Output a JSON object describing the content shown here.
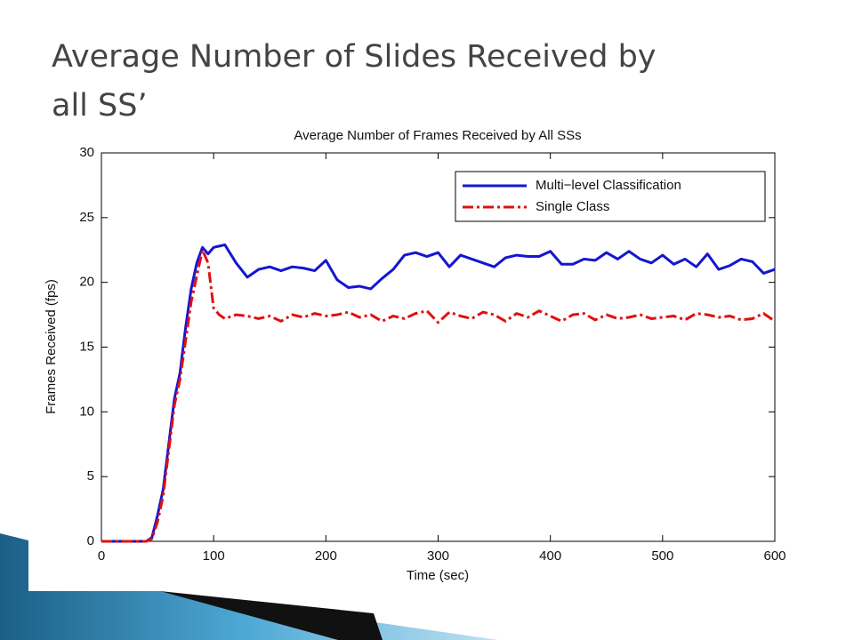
{
  "slide_title": [
    "Average Number of Slides Received by",
    "all SS’"
  ],
  "chart_data": {
    "type": "line",
    "title": "Average Number of Frames Received by All SSs",
    "xlabel": "Time (sec)",
    "ylabel": "Frames Received (fps)",
    "xlim": [
      0,
      600
    ],
    "xticks": [
      0,
      100,
      200,
      300,
      400,
      500,
      600
    ],
    "ylim": [
      0,
      30
    ],
    "yticks": [
      0,
      5,
      10,
      15,
      20,
      25,
      30
    ],
    "legend": "upper right",
    "grid": false,
    "x": [
      0,
      10,
      20,
      30,
      40,
      45,
      50,
      55,
      60,
      65,
      70,
      75,
      80,
      85,
      90,
      95,
      100,
      105,
      110,
      120,
      130,
      140,
      150,
      160,
      170,
      180,
      190,
      200,
      210,
      220,
      230,
      240,
      250,
      260,
      270,
      280,
      290,
      300,
      310,
      320,
      330,
      340,
      350,
      360,
      370,
      380,
      390,
      400,
      410,
      420,
      430,
      440,
      450,
      460,
      470,
      480,
      490,
      500,
      510,
      520,
      530,
      540,
      550,
      560,
      570,
      580,
      590,
      600
    ],
    "series": [
      {
        "name": "Multi−level Classification",
        "color": "#1515d0",
        "style": "solid",
        "values": [
          0,
          0,
          0,
          0,
          0,
          0.3,
          2,
          4,
          7.5,
          11,
          13,
          16.5,
          19.5,
          21.5,
          22.7,
          22.2,
          22.7,
          22.8,
          22.9,
          21.5,
          20.4,
          21,
          21.2,
          20.9,
          21.2,
          21.1,
          20.9,
          21.7,
          20.2,
          19.6,
          19.7,
          19.5,
          20.3,
          21,
          22.1,
          22.3,
          22,
          22.3,
          21.2,
          22.1,
          21.8,
          21.5,
          21.2,
          21.9,
          22.1,
          22,
          22,
          22.4,
          21.4,
          21.4,
          21.8,
          21.7,
          22.3,
          21.8,
          22.4,
          21.8,
          21.5,
          22.1,
          21.4,
          21.8,
          21.2,
          22.2,
          21,
          21.3,
          21.8,
          21.6,
          20.7,
          21
        ]
      },
      {
        "name": "Single Class",
        "color": "#e01010",
        "style": "dashdot",
        "values": [
          0,
          0,
          0,
          0,
          0,
          0.2,
          1.5,
          3.5,
          7,
          10.5,
          12.5,
          15.5,
          18.5,
          20.5,
          22.5,
          21.5,
          18,
          17.5,
          17.2,
          17.5,
          17.4,
          17.2,
          17.4,
          17,
          17.5,
          17.3,
          17.6,
          17.4,
          17.5,
          17.7,
          17.3,
          17.5,
          17,
          17.4,
          17.2,
          17.6,
          17.8,
          16.9,
          17.7,
          17.4,
          17.2,
          17.7,
          17.5,
          17,
          17.6,
          17.3,
          17.8,
          17.4,
          17,
          17.5,
          17.6,
          17.1,
          17.5,
          17.2,
          17.3,
          17.5,
          17.2,
          17.3,
          17.4,
          17.1,
          17.6,
          17.5,
          17.3,
          17.4,
          17.1,
          17.2,
          17.6,
          17
        ]
      }
    ]
  }
}
